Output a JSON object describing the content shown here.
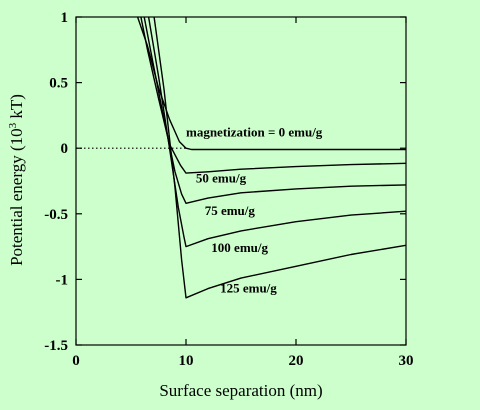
{
  "chart_data": {
    "type": "line",
    "xlabel": "Surface separation (nm)",
    "ylabel_main": "Potential energy (10",
    "ylabel_sup": "3",
    "ylabel_unit": " kT)",
    "xlim": [
      0,
      30
    ],
    "ylim": [
      -1.5,
      1
    ],
    "xticks": [
      0,
      10,
      20,
      30
    ],
    "xtick_labels": [
      "0",
      "10",
      "20",
      "30"
    ],
    "yticks": [
      1,
      0.5,
      0,
      -0.5,
      -1,
      -1.5
    ],
    "ytick_labels": [
      "1",
      "0.5",
      "0",
      "-0.5",
      "-1",
      "-1.5"
    ],
    "grid": false,
    "legend": "none",
    "background_color": "#ccffcc",
    "series": [
      {
        "label": "magnetization = 0 emu/g",
        "dashed_extension": true,
        "x": [
          5.6,
          6.5,
          7.5,
          8.5,
          9.4,
          10,
          10.5,
          30
        ],
        "y": [
          1.0,
          0.78,
          0.46,
          0.22,
          0.05,
          0.0,
          -0.01,
          -0.01
        ]
      },
      {
        "label": "50 emu/g",
        "x": [
          5.9,
          6.5,
          7.5,
          8.5,
          9.5,
          10,
          12,
          15,
          20,
          25,
          30
        ],
        "y": [
          1.0,
          0.75,
          0.38,
          0.03,
          -0.13,
          -0.19,
          -0.18,
          -0.16,
          -0.14,
          -0.125,
          -0.115
        ]
      },
      {
        "label": "75 emu/g",
        "x": [
          6.2,
          7.0,
          8.0,
          9.0,
          9.6,
          10,
          12,
          15,
          20,
          25,
          30
        ],
        "y": [
          1.0,
          0.65,
          0.22,
          -0.18,
          -0.35,
          -0.42,
          -0.38,
          -0.34,
          -0.31,
          -0.29,
          -0.28
        ]
      },
      {
        "label": "100 emu/g",
        "x": [
          6.6,
          7.5,
          8.5,
          9.3,
          9.8,
          10,
          12,
          15,
          20,
          25,
          30
        ],
        "y": [
          1.0,
          0.55,
          0.0,
          -0.45,
          -0.67,
          -0.75,
          -0.69,
          -0.63,
          -0.56,
          -0.51,
          -0.48
        ]
      },
      {
        "label": "125 emu/g",
        "x": [
          7.1,
          8.0,
          9.0,
          9.6,
          10,
          12,
          15,
          20,
          25,
          30
        ],
        "y": [
          1.0,
          0.45,
          -0.3,
          -0.85,
          -1.14,
          -1.07,
          -0.99,
          -0.9,
          -0.81,
          -0.74
        ]
      }
    ],
    "annotations": [
      {
        "text": "magnetization = 0 emu/g",
        "x": 10,
        "y": 0.09
      },
      {
        "text": "50 emu/g",
        "x": 10.9,
        "y": -0.26
      },
      {
        "text": "75 emu/g",
        "x": 11.7,
        "y": -0.51
      },
      {
        "text": "100 emu/g",
        "x": 12.3,
        "y": -0.79
      },
      {
        "text": "125 emu/g",
        "x": 13.1,
        "y": -1.1
      }
    ]
  }
}
